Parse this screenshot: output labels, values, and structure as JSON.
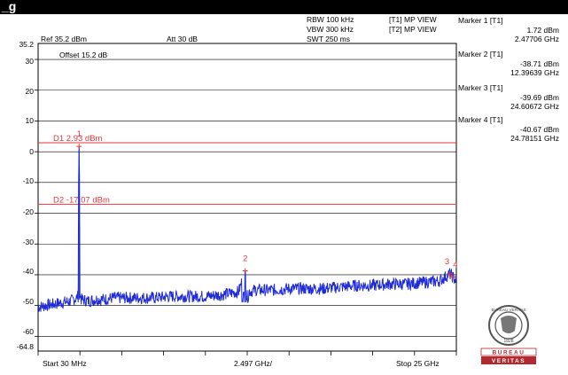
{
  "window": {
    "title_fragment": "_g"
  },
  "header": {
    "ref_level": "Ref 35.2 dBm",
    "attenuation": "Att  30 dB",
    "offset": "Offset 15.2 dB",
    "rbw": "RBW 100 kHz",
    "vbw": "VBW 300 kHz",
    "swt": "SWT 250 ms",
    "trace1": "[T1] MP VIEW",
    "trace2": "[T2] MP VIEW"
  },
  "markers": [
    {
      "name": "Marker 1 [T1]",
      "level": "1.72 dBm",
      "freq": "2.47706 GHz"
    },
    {
      "name": "Marker 2 [T1]",
      "level": "-38.71 dBm",
      "freq": "12.39639 GHz"
    },
    {
      "name": "Marker 3 [T1]",
      "level": "-39.69 dBm",
      "freq": "24.60672 GHz"
    },
    {
      "name": "Marker 4 [T1]",
      "level": "-40.67 dBm",
      "freq": "24.78151 GHz"
    }
  ],
  "display_lines": [
    {
      "label": "D1 2.93 dBm",
      "value": 2.93
    },
    {
      "label": "D2 -17.07 dBm",
      "value": -17.07
    }
  ],
  "axis": {
    "y_top_label": "35.2",
    "y_bottom_label": "-64.8",
    "y_ticks": [
      "30",
      "20",
      "10",
      "0",
      "-10",
      "-20",
      "-30",
      "-40",
      "-50",
      "-60"
    ],
    "x_start": "Start 30 MHz",
    "x_div": "2.497 GHz/",
    "x_stop": "Stop 25 GHz"
  },
  "chart_data": {
    "type": "line",
    "x_unit": "GHz",
    "y_unit": "dBm",
    "xlim": [
      0.03,
      25
    ],
    "ylim": [
      -64.8,
      35.2
    ],
    "series": [
      {
        "values": [
          [
            0.03,
            -50.5
          ],
          [
            0.5,
            -50
          ],
          [
            1.0,
            -49.5
          ],
          [
            1.5,
            -49
          ],
          [
            2.0,
            -48.5
          ],
          [
            2.35,
            -47.5
          ],
          [
            2.477,
            1.72
          ],
          [
            2.6,
            -48
          ],
          [
            3.0,
            -48.5
          ],
          [
            3.5,
            -48
          ],
          [
            4.0,
            -48
          ],
          [
            4.5,
            -47.5
          ],
          [
            5.0,
            -47.5
          ],
          [
            6.0,
            -47.5
          ],
          [
            7.0,
            -47.5
          ],
          [
            8.0,
            -47
          ],
          [
            9.0,
            -47
          ],
          [
            10.0,
            -47
          ],
          [
            11.0,
            -46.5
          ],
          [
            12.0,
            -45.5
          ],
          [
            12.396,
            -38.71
          ],
          [
            12.6,
            -45.5
          ],
          [
            13.0,
            -45
          ],
          [
            14.0,
            -45
          ],
          [
            15.0,
            -44.5
          ],
          [
            16.0,
            -44.5
          ],
          [
            17.0,
            -44.5
          ],
          [
            18.0,
            -44
          ],
          [
            19.0,
            -43.5
          ],
          [
            20.0,
            -43.5
          ],
          [
            21.0,
            -43
          ],
          [
            22.0,
            -43
          ],
          [
            23.0,
            -42.5
          ],
          [
            24.0,
            -42
          ],
          [
            24.607,
            -39.69
          ],
          [
            24.782,
            -40.67
          ],
          [
            25.0,
            -42
          ]
        ]
      }
    ],
    "marker_points": [
      {
        "label": "1",
        "x": 2.47706,
        "y": 1.72
      },
      {
        "label": "2",
        "x": 12.39639,
        "y": -38.71
      },
      {
        "label": "3",
        "x": 24.60672,
        "y": -39.69
      },
      {
        "label": "4",
        "x": 24.78151,
        "y": -40.67
      }
    ],
    "colors": {
      "trace": "#1f2bd6",
      "display_line": "#e23a3a",
      "marker": "#e23a3a"
    }
  },
  "logo": {
    "top_text": "BUREAU VERITAS",
    "year": "1828",
    "band1": "BUREAU",
    "band2": "VERITAS"
  }
}
